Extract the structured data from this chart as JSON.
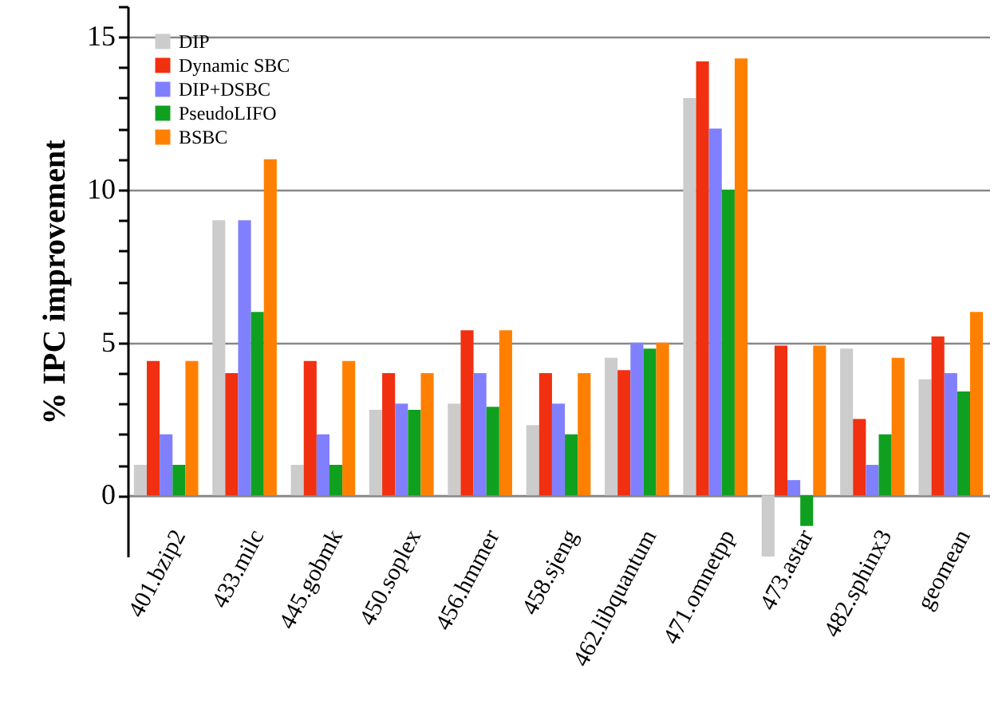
{
  "chart_data": {
    "type": "bar",
    "ylabel": "% IPC improvement",
    "categories": [
      "401.bzip2",
      "433.milc",
      "445.gobmk",
      "450.soplex",
      "456.hmmer",
      "458.sjeng",
      "462.libquantum",
      "471.omnetpp",
      "473.astar",
      "482.sphinx3",
      "geomean"
    ],
    "series": [
      {
        "name": "DIP",
        "color": "#cccccc",
        "values": [
          1.0,
          9.0,
          1.0,
          2.8,
          3.0,
          2.3,
          4.5,
          13.0,
          -2.0,
          4.8,
          3.8
        ]
      },
      {
        "name": "Dynamic SBC",
        "color": "#f03010",
        "values": [
          4.4,
          4.0,
          4.4,
          4.0,
          5.4,
          4.0,
          4.1,
          14.2,
          4.9,
          2.5,
          5.2
        ]
      },
      {
        "name": "DIP+DSBC",
        "color": "#8080ff",
        "values": [
          2.0,
          9.0,
          2.0,
          3.0,
          4.0,
          3.0,
          5.0,
          12.0,
          0.5,
          1.0,
          4.0
        ]
      },
      {
        "name": "PseudoLIFO",
        "color": "#10a020",
        "values": [
          1.0,
          6.0,
          1.0,
          2.8,
          2.9,
          2.0,
          4.8,
          10.0,
          -1.0,
          2.0,
          3.4
        ]
      },
      {
        "name": "BSBC",
        "color": "#ff8000",
        "values": [
          4.4,
          11.0,
          4.4,
          4.0,
          5.4,
          4.0,
          5.0,
          14.3,
          4.9,
          4.5,
          6.0
        ]
      }
    ],
    "ylim": [
      -2,
      16
    ],
    "yticks": [
      0,
      {
        "value": 1,
        "label": null
      },
      {
        "value": 2,
        "label": null
      },
      {
        "value": 3,
        "label": null
      },
      {
        "value": 4,
        "label": null
      },
      5,
      {
        "value": 6,
        "label": null
      },
      {
        "value": 7,
        "label": null
      },
      {
        "value": 8,
        "label": null
      },
      {
        "value": 9,
        "label": null
      },
      10,
      {
        "value": 11,
        "label": null
      },
      {
        "value": 12,
        "label": null
      },
      {
        "value": 13,
        "label": null
      },
      {
        "value": 14,
        "label": null
      },
      15,
      {
        "value": 16,
        "label": null
      }
    ],
    "grid": "y",
    "legend": "top left"
  }
}
